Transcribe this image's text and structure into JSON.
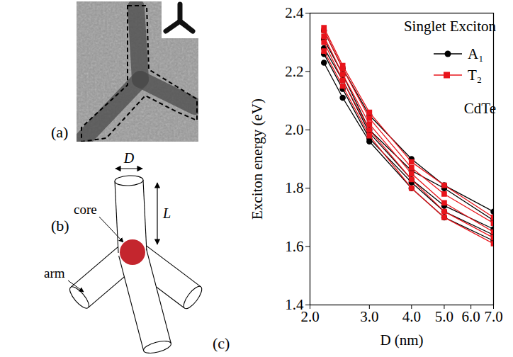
{
  "figure": {
    "panels": [
      {
        "label": "(a)"
      },
      {
        "label": "(b)",
        "labels": [
          "D",
          "L",
          "core",
          "arm"
        ]
      },
      {
        "label": "(c)"
      }
    ]
  },
  "chart_data": {
    "type": "line",
    "xlabel": "D (nm)",
    "ylabel": "Exciton energy (eV)",
    "x": [
      2.2,
      2.5,
      3.0,
      4.0,
      5.0,
      7.0
    ],
    "series": [
      {
        "name": "A₁",
        "color": "#000000",
        "marker": "circle",
        "values": [
          [
            2.23,
            2.11,
            1.96,
            1.8,
            1.7,
            1.62
          ],
          [
            2.26,
            2.14,
            1.97,
            1.82,
            1.72,
            1.64
          ],
          [
            2.28,
            2.17,
            1.99,
            1.83,
            1.74,
            1.66
          ],
          [
            2.31,
            2.19,
            2.0,
            1.86,
            1.8,
            1.69
          ],
          [
            2.34,
            2.21,
            2.05,
            1.9,
            1.81,
            1.72
          ]
        ]
      },
      {
        "name": "T₂",
        "color": "#e8141b",
        "marker": "square",
        "values": [
          [
            2.27,
            2.15,
            1.98,
            1.8,
            1.7,
            1.61
          ],
          [
            2.3,
            2.17,
            2.0,
            1.83,
            1.72,
            1.63
          ],
          [
            2.32,
            2.19,
            2.02,
            1.85,
            1.75,
            1.65
          ],
          [
            2.34,
            2.21,
            2.04,
            1.87,
            1.78,
            1.68
          ],
          [
            2.35,
            2.22,
            2.06,
            1.89,
            1.81,
            1.7
          ]
        ]
      }
    ],
    "xlim": [
      2,
      7
    ],
    "xticks": [
      {
        "value": 2,
        "label": "2.0"
      },
      {
        "value": 3,
        "label": "3.0"
      },
      {
        "value": 4,
        "label": "4.0"
      },
      {
        "value": 5,
        "label": "5.0"
      },
      {
        "value": 6,
        "label": "6.0"
      },
      {
        "value": 7,
        "label": "7.0"
      }
    ],
    "ylim": [
      1.4,
      2.4
    ],
    "yticks": [
      1.4,
      1.6,
      1.8,
      {
        "value": 2,
        "label": "2.0"
      },
      2.2,
      2.4
    ],
    "log": "x",
    "grid": false,
    "legend": "top-right",
    "annotations": [
      {
        "text": "Singlet Exciton"
      },
      {
        "text": "CdTe"
      }
    ]
  }
}
